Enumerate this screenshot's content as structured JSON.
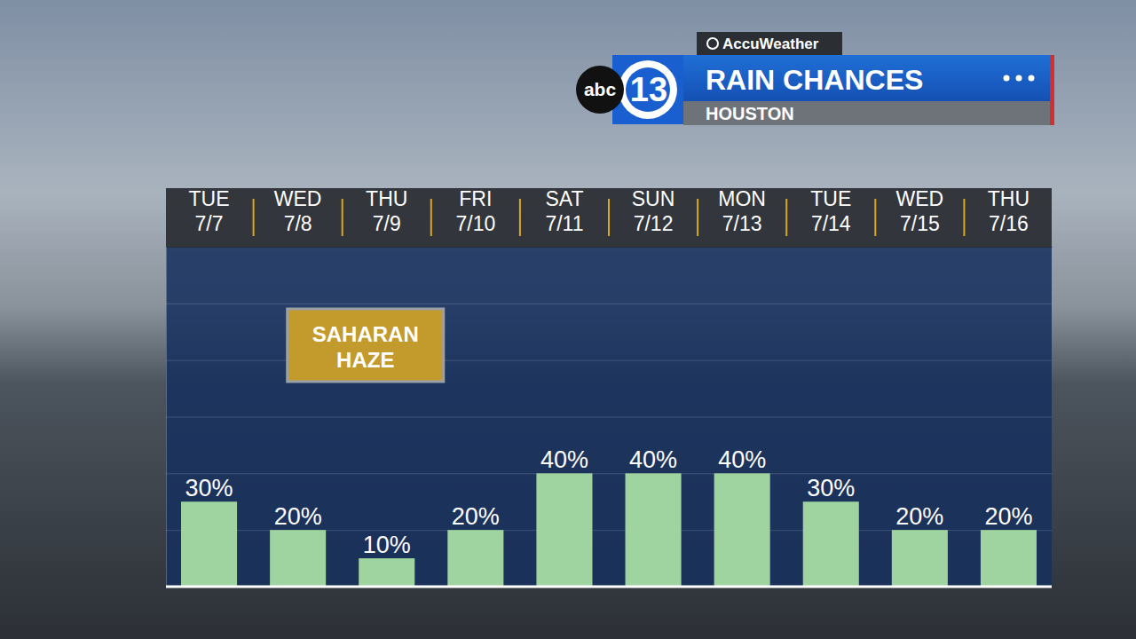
{
  "chart_data": {
    "type": "bar",
    "title": "RAIN CHANCES",
    "subtitle": "HOUSTON",
    "categories": [
      "TUE 7/7",
      "WED 7/8",
      "THU 7/9",
      "FRI 7/10",
      "SAT 7/11",
      "SUN 7/12",
      "MON 7/13",
      "TUE 7/14",
      "WED 7/15",
      "THU 7/16"
    ],
    "values": [
      30,
      20,
      10,
      20,
      40,
      40,
      40,
      30,
      20,
      20
    ],
    "value_labels": [
      "30%",
      "20%",
      "10%",
      "20%",
      "40%",
      "40%",
      "40%",
      "30%",
      "20%",
      "20%"
    ],
    "color": "#9fd4a0",
    "ylim": [
      0,
      120
    ],
    "yticks": [
      0,
      20,
      40,
      60,
      80,
      100,
      120
    ],
    "grid": true,
    "data_labels": true,
    "tick_labels": "x",
    "annotations": [
      "SAHARAN HAZE"
    ]
  },
  "branding": {
    "provider": "AccuWeather",
    "network": "abc",
    "channel": "13"
  }
}
